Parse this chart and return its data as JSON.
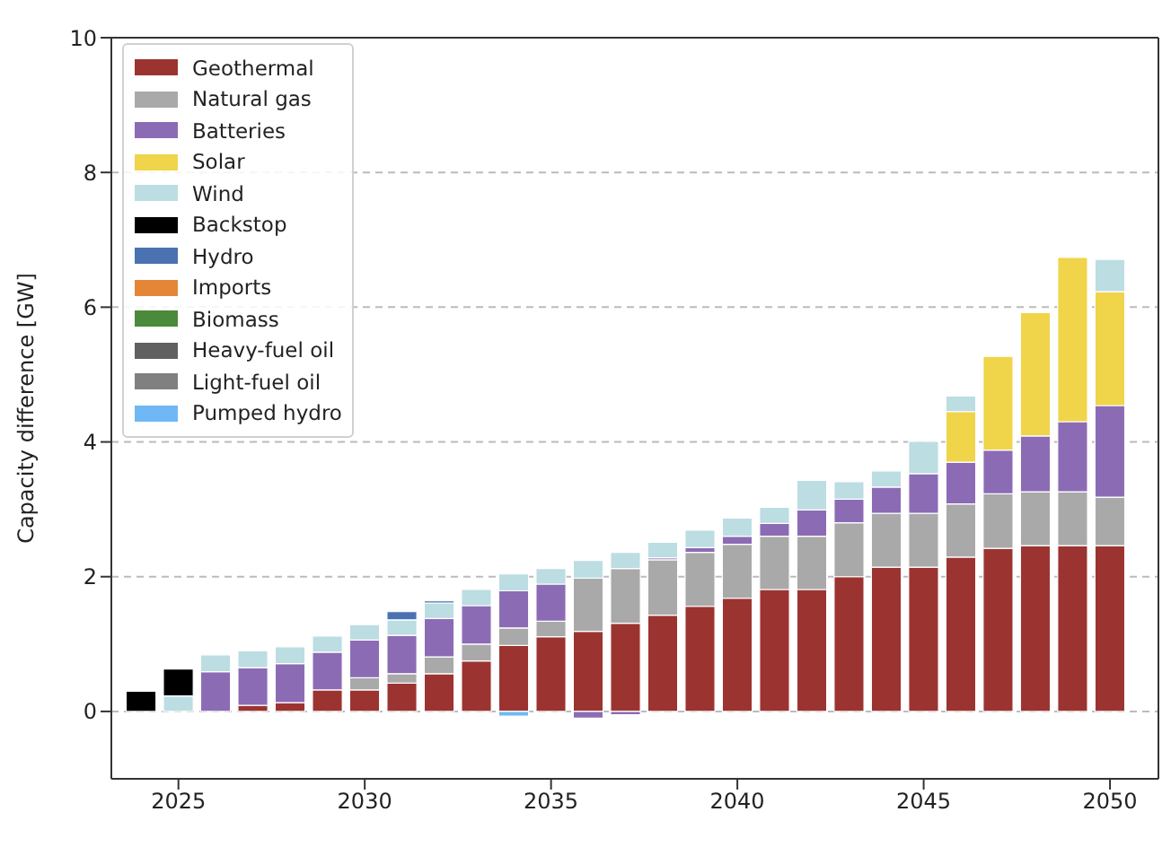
{
  "chart_data": {
    "type": "bar",
    "stacked": true,
    "ylabel": "Capacity difference [GW]",
    "x": [
      2024,
      2025,
      2026,
      2027,
      2028,
      2029,
      2030,
      2031,
      2032,
      2033,
      2034,
      2035,
      2036,
      2037,
      2038,
      2039,
      2040,
      2041,
      2042,
      2043,
      2044,
      2045,
      2046,
      2047,
      2048,
      2049,
      2050
    ],
    "xlim": [
      2023.2,
      2051.3
    ],
    "xticks": [
      2025,
      2030,
      2035,
      2040,
      2045,
      2050
    ],
    "ylim": [
      -1,
      10
    ],
    "yticks": [
      0,
      2,
      4,
      6,
      8,
      10
    ],
    "grid": "y",
    "legend": "top left",
    "series": [
      {
        "name": "Geothermal",
        "color": "#9b3430",
        "values": [
          null,
          null,
          null,
          0.09,
          0.13,
          0.32,
          0.32,
          0.42,
          0.56,
          0.75,
          0.98,
          1.11,
          1.19,
          1.31,
          1.43,
          1.56,
          1.68,
          1.81,
          1.81,
          2.0,
          2.14,
          2.14,
          2.29,
          2.42,
          2.46,
          2.46,
          2.46
        ]
      },
      {
        "name": "Natural gas",
        "color": "#a9a9a9",
        "values": [
          null,
          null,
          null,
          null,
          null,
          null,
          0.18,
          0.14,
          0.25,
          0.25,
          0.26,
          0.23,
          0.79,
          0.81,
          0.82,
          0.8,
          0.8,
          0.79,
          0.79,
          0.8,
          0.8,
          0.8,
          0.79,
          0.81,
          0.8,
          0.8,
          0.72
        ]
      },
      {
        "name": "Batteries",
        "color": "#8c6bb5",
        "values": [
          null,
          null,
          0.59,
          0.56,
          0.58,
          0.56,
          0.56,
          0.57,
          0.57,
          0.57,
          0.55,
          0.55,
          -0.1,
          -0.05,
          0.03,
          0.07,
          0.12,
          0.19,
          0.39,
          0.35,
          0.39,
          0.59,
          0.62,
          0.65,
          0.83,
          1.04,
          1.36
        ]
      },
      {
        "name": "Solar",
        "color": "#f0d44a",
        "values": [
          null,
          null,
          null,
          null,
          null,
          null,
          null,
          null,
          null,
          null,
          null,
          null,
          null,
          null,
          null,
          null,
          null,
          null,
          null,
          null,
          null,
          null,
          0.75,
          1.39,
          1.83,
          2.44,
          1.69
        ]
      },
      {
        "name": "Wind",
        "color": "#bcdde2",
        "values": [
          null,
          0.23,
          0.25,
          0.25,
          0.25,
          0.24,
          0.23,
          0.23,
          0.23,
          0.24,
          0.25,
          0.23,
          0.26,
          0.24,
          0.23,
          0.26,
          0.27,
          0.24,
          0.44,
          0.26,
          0.24,
          0.48,
          0.23,
          null,
          null,
          null,
          0.48
        ]
      },
      {
        "name": "Backstop",
        "color": "#000000",
        "values": [
          0.3,
          0.4,
          null,
          null,
          null,
          null,
          null,
          null,
          null,
          null,
          null,
          null,
          null,
          null,
          null,
          null,
          null,
          null,
          null,
          null,
          null,
          null,
          null,
          null,
          null,
          null,
          null
        ]
      },
      {
        "name": "Hydro",
        "color": "#4a72b0",
        "values": [
          null,
          null,
          null,
          null,
          null,
          null,
          null,
          0.12,
          0.03,
          null,
          null,
          null,
          null,
          null,
          null,
          null,
          null,
          null,
          null,
          null,
          null,
          null,
          null,
          null,
          null,
          null,
          null
        ]
      },
      {
        "name": "Imports",
        "color": "#e58637",
        "values": [
          null,
          null,
          null,
          null,
          null,
          null,
          null,
          null,
          null,
          null,
          null,
          null,
          null,
          null,
          null,
          null,
          null,
          null,
          null,
          null,
          null,
          null,
          null,
          null,
          null,
          null,
          null
        ]
      },
      {
        "name": "Biomass",
        "color": "#4a8a3a",
        "values": [
          null,
          null,
          null,
          null,
          null,
          null,
          null,
          null,
          null,
          null,
          null,
          null,
          null,
          null,
          null,
          null,
          null,
          null,
          null,
          null,
          null,
          null,
          null,
          null,
          null,
          null,
          null
        ]
      },
      {
        "name": "Heavy-fuel oil",
        "color": "#606060",
        "values": [
          null,
          null,
          null,
          null,
          null,
          null,
          null,
          null,
          null,
          null,
          null,
          null,
          null,
          null,
          null,
          null,
          null,
          null,
          null,
          null,
          null,
          null,
          null,
          null,
          null,
          null,
          null
        ]
      },
      {
        "name": "Light-fuel oil",
        "color": "#808080",
        "values": [
          null,
          null,
          null,
          null,
          null,
          null,
          null,
          null,
          null,
          null,
          null,
          null,
          null,
          null,
          null,
          null,
          null,
          null,
          null,
          null,
          null,
          null,
          null,
          null,
          null,
          null,
          null
        ]
      },
      {
        "name": "Pumped hydro",
        "color": "#6fb8f5",
        "values": [
          null,
          null,
          null,
          null,
          null,
          null,
          null,
          null,
          null,
          null,
          -0.07,
          null,
          null,
          null,
          null,
          null,
          null,
          null,
          null,
          null,
          null,
          null,
          null,
          null,
          null,
          null,
          null
        ]
      }
    ]
  }
}
